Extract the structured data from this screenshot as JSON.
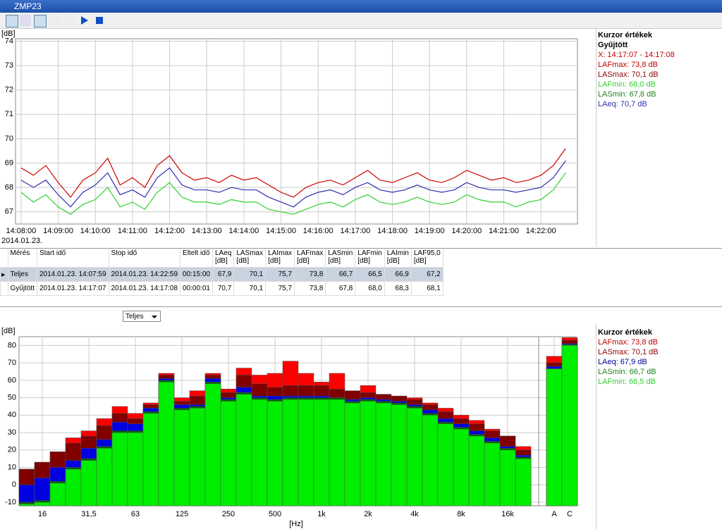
{
  "window": {
    "title": "ZMP23"
  },
  "time_chart": {
    "type": "line",
    "y_unit": "[dB]",
    "date": "2014.01.23.",
    "x": [
      "14:08:00",
      "14:08:20",
      "14:08:40",
      "14:09:00",
      "14:09:20",
      "14:09:40",
      "14:10:00",
      "14:10:20",
      "14:10:40",
      "14:11:00",
      "14:11:20",
      "14:11:40",
      "14:12:00",
      "14:12:20",
      "14:12:40",
      "14:13:00",
      "14:13:20",
      "14:13:40",
      "14:14:00",
      "14:14:20",
      "14:14:40",
      "14:15:00",
      "14:15:20",
      "14:15:40",
      "14:16:00",
      "14:16:20",
      "14:16:40",
      "14:17:00",
      "14:17:20",
      "14:17:40",
      "14:18:00",
      "14:18:20",
      "14:18:40",
      "14:19:00",
      "14:19:20",
      "14:19:40",
      "14:20:00",
      "14:20:20",
      "14:20:40",
      "14:21:00",
      "14:21:20",
      "14:21:40",
      "14:22:00",
      "14:22:20",
      "14:22:40"
    ],
    "xlim": [
      "14:07:59",
      "14:22:59"
    ],
    "xticks": [
      "14:08:00",
      "14:09:00",
      "14:10:00",
      "14:11:00",
      "14:12:00",
      "14:13:00",
      "14:14:00",
      "14:15:00",
      "14:16:00",
      "14:17:00",
      "14:18:00",
      "14:19:00",
      "14:20:00",
      "14:21:00",
      "14:22:00"
    ],
    "ylim": [
      66.5,
      74.1
    ],
    "yticks": [
      67,
      68,
      69,
      70,
      71,
      72,
      73,
      74
    ],
    "grid": true,
    "series": [
      {
        "color": "#d00000",
        "values": [
          68.8,
          68.5,
          68.9,
          68.2,
          67.6,
          68.3,
          68.6,
          69.2,
          68.1,
          68.4,
          68.0,
          68.9,
          69.3,
          68.6,
          68.3,
          68.4,
          68.2,
          68.5,
          68.3,
          68.4,
          68.1,
          67.8,
          67.6,
          68.0,
          68.2,
          68.3,
          68.1,
          68.4,
          68.7,
          68.3,
          68.2,
          68.4,
          68.6,
          68.3,
          68.2,
          68.4,
          68.7,
          68.5,
          68.3,
          68.4,
          68.2,
          68.3,
          68.5,
          68.9,
          69.6
        ]
      },
      {
        "color": "#3030b0",
        "values": [
          68.3,
          68.0,
          68.3,
          67.7,
          67.2,
          67.8,
          68.1,
          68.6,
          67.7,
          67.9,
          67.6,
          68.4,
          68.8,
          68.1,
          67.9,
          67.9,
          67.8,
          68.0,
          67.9,
          67.9,
          67.6,
          67.4,
          67.2,
          67.6,
          67.8,
          67.9,
          67.7,
          68.0,
          68.2,
          67.9,
          67.8,
          67.9,
          68.1,
          67.9,
          67.8,
          67.9,
          68.2,
          68.0,
          67.9,
          67.9,
          67.8,
          67.9,
          68.0,
          68.4,
          69.1
        ]
      },
      {
        "color": "#30d030",
        "values": [
          67.8,
          67.4,
          67.7,
          67.2,
          66.9,
          67.3,
          67.5,
          68.0,
          67.2,
          67.4,
          67.1,
          67.8,
          68.2,
          67.6,
          67.4,
          67.4,
          67.3,
          67.5,
          67.4,
          67.4,
          67.1,
          67.0,
          66.9,
          67.1,
          67.3,
          67.4,
          67.2,
          67.5,
          67.7,
          67.4,
          67.3,
          67.4,
          67.6,
          67.4,
          67.3,
          67.4,
          67.7,
          67.5,
          67.4,
          67.4,
          67.2,
          67.4,
          67.5,
          67.9,
          68.6
        ]
      }
    ]
  },
  "cursor_panel_top": {
    "title": "Kurzor értékek",
    "subtitle": "Gyűjtött",
    "items": [
      {
        "text": "X: 14:17:07 - 14:17:08",
        "color": "#c00000"
      },
      {
        "text": "LAFmax: 73,8 dB",
        "color": "#c00000"
      },
      {
        "text": "LASmax: 70,1 dB",
        "color": "#900000"
      },
      {
        "text": "LAFmin: 68,0 dB",
        "color": "#30d030"
      },
      {
        "text": "LASmin: 67,8 dB",
        "color": "#208020"
      },
      {
        "text": "LAeq: 70,7 dB",
        "color": "#3030b0"
      }
    ]
  },
  "table": {
    "columns": [
      "Mérés",
      "Start idő",
      "Stop idő",
      "Eltelt idő",
      "LAeq\n[dB]",
      "LASmax\n[dB]",
      "LAImax\n[dB]",
      "LAFmax\n[dB]",
      "LASmin\n[dB]",
      "LAFmin\n[dB]",
      "LAImin\n[dB]",
      "LAF95,0\n[dB]"
    ],
    "rows": [
      [
        "Teljes",
        "2014.01.23. 14:07:59",
        "2014.01.23. 14:22:59",
        "00:15:00",
        "67,9",
        "70,1",
        "75,7",
        "73,8",
        "66,7",
        "66,5",
        "66,9",
        "67,2"
      ],
      [
        "Gyűjtött",
        "2014.01.23. 14:17:07",
        "2014.01.23. 14:17:08",
        "00:00:01",
        "70,7",
        "70,1",
        "75,7",
        "73,8",
        "67,8",
        "68,0",
        "68,3",
        "68,1"
      ]
    ]
  },
  "dropdown": {
    "value": "Teljes"
  },
  "spectrum_chart": {
    "type": "bar",
    "y_unit": "[dB]",
    "x_unit": "[Hz]",
    "categories": [
      null,
      "16",
      null,
      null,
      "31,5",
      null,
      null,
      "63",
      null,
      null,
      "125",
      null,
      null,
      "250",
      null,
      null,
      "500",
      null,
      null,
      "1k",
      null,
      null,
      "2k",
      null,
      null,
      "4k",
      null,
      null,
      "8k",
      null,
      null,
      "16k",
      null,
      "A",
      "C"
    ],
    "ylim": [
      -12,
      85
    ],
    "yticks": [
      -10,
      0,
      10,
      20,
      30,
      40,
      50,
      60,
      70,
      80
    ],
    "grid": true,
    "series": [
      {
        "color": "#ff0000",
        "values": [
          9,
          13,
          19,
          27,
          31,
          38,
          45,
          41,
          47,
          64,
          50,
          54,
          64,
          55,
          67,
          63,
          64,
          71,
          64,
          59,
          64,
          53,
          57,
          51,
          50,
          50,
          47,
          44,
          40,
          37,
          32,
          28,
          22,
          73.8,
          84.5
        ]
      },
      {
        "color": "#800000",
        "values": [
          9,
          13,
          19,
          24,
          28,
          34,
          41,
          38,
          46,
          63,
          48,
          51,
          63,
          53,
          63,
          58,
          56,
          57,
          57,
          57,
          55,
          54,
          53,
          52,
          51,
          49,
          46,
          42,
          38,
          35,
          31,
          28,
          20,
          70.1,
          83
        ]
      },
      {
        "color": "#0000e0",
        "values": [
          0,
          4,
          10,
          14,
          21,
          26,
          36,
          35,
          44,
          61,
          46,
          46,
          61,
          50,
          56,
          51,
          51,
          51,
          51,
          51,
          50,
          49,
          50,
          49,
          48,
          46,
          43,
          38,
          35,
          31,
          27,
          22,
          17,
          67.9,
          81
        ]
      },
      {
        "color": "#006000",
        "values": [
          -10,
          -9,
          2,
          10,
          15,
          22,
          31,
          31,
          42,
          60,
          44,
          45,
          59,
          49,
          53,
          50,
          49,
          50,
          50,
          50,
          50,
          48,
          49,
          48,
          47,
          45,
          41,
          36,
          33,
          29,
          25,
          21,
          16,
          66.7,
          80.5
        ]
      },
      {
        "color": "#00ee00",
        "values": [
          -11,
          -10,
          1,
          9,
          14,
          21,
          30,
          30,
          41,
          59,
          43,
          44,
          58,
          48,
          52,
          49,
          48,
          49,
          49,
          49,
          49,
          47,
          48,
          47,
          46,
          44,
          40,
          35,
          32,
          28,
          24,
          20,
          15,
          66.5,
          80
        ]
      }
    ]
  },
  "cursor_panel_bottom": {
    "title": "Kurzor értékek",
    "items": [
      {
        "text": "LAFmax: 73,8 dB",
        "color": "#c00000"
      },
      {
        "text": "LASmax: 70,1 dB",
        "color": "#900000"
      },
      {
        "text": "LAeq: 67,9 dB",
        "color": "#000090"
      },
      {
        "text": "LASmin: 66,7 dB",
        "color": "#208020"
      },
      {
        "text": "LAFmin: 66,5 dB",
        "color": "#30d030"
      }
    ]
  }
}
